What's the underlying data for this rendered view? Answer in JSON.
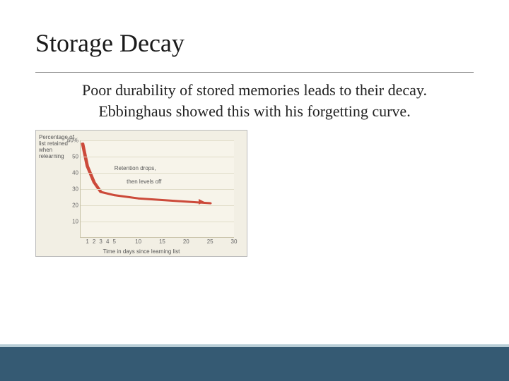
{
  "title": "Storage Decay",
  "body": "Poor durability of stored memories leads to their decay. Ebbinghaus showed this with his forgetting curve.",
  "chart": {
    "type": "line",
    "background_color": "#f2efe4",
    "plot_bg": "#f7f4ea",
    "grid_color": "#e0dcc8",
    "axis_color": "#c8c2a8",
    "line_color": "#cc4a3a",
    "line_width": 3,
    "y_label": "Percentage of list retained when relearning",
    "x_label": "Time in days since learning list",
    "ylim": [
      0,
      60
    ],
    "yticks": [
      10,
      20,
      30,
      40,
      50,
      60
    ],
    "ytick_label_60": "60%",
    "xticks": [
      1,
      2,
      3,
      4,
      5,
      10,
      15,
      20,
      25,
      30
    ],
    "annotation1": "Retention drops,",
    "annotation2": "then levels off",
    "data_points": [
      {
        "x": 0.3,
        "y": 58
      },
      {
        "x": 1,
        "y": 44
      },
      {
        "x": 2,
        "y": 34
      },
      {
        "x": 3,
        "y": 28
      },
      {
        "x": 4,
        "y": 27
      },
      {
        "x": 5,
        "y": 26
      },
      {
        "x": 10,
        "y": 24
      },
      {
        "x": 15,
        "y": 23
      },
      {
        "x": 20,
        "y": 22
      },
      {
        "x": 25,
        "y": 21
      }
    ],
    "x_domain": [
      0,
      30
    ]
  },
  "colors": {
    "footer_band": "#355a73",
    "footer_accent": "#b8cdd6"
  }
}
